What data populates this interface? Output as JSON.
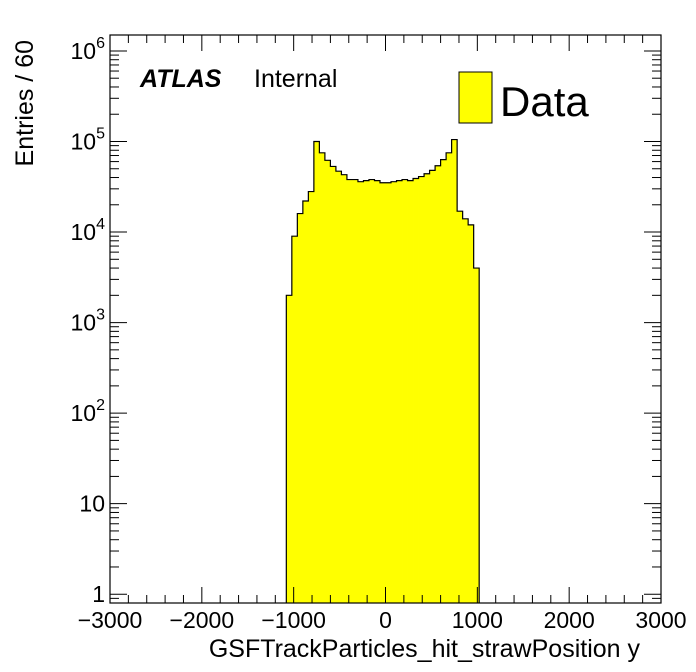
{
  "label": {
    "experiment": "ATLAS",
    "status": "Internal"
  },
  "colors": {
    "fill": "#ffff00",
    "line": "#000000"
  },
  "chart_data": {
    "type": "bar",
    "xlabel": "GSFTrackParticles_hit_strawPosition y",
    "ylabel": "Entries / 60",
    "xlim": [
      -3000,
      3000
    ],
    "ylim": [
      0.8,
      1500000
    ],
    "yscale": "log",
    "grid": false,
    "legend_position": "top-right",
    "xticks": [
      -3000,
      -2000,
      -1000,
      0,
      1000,
      2000,
      3000
    ],
    "xtick_labels": [
      "−3000",
      "−2000",
      "−1000",
      "0",
      "1000",
      "2000",
      "3000"
    ],
    "yticks": [
      {
        "value": 1,
        "base": "1",
        "exp": ""
      },
      {
        "value": 10,
        "base": "10",
        "exp": ""
      },
      {
        "value": 100,
        "base": "10",
        "exp": "2"
      },
      {
        "value": 1000,
        "base": "10",
        "exp": "3"
      },
      {
        "value": 10000,
        "base": "10",
        "exp": "4"
      },
      {
        "value": 100000,
        "base": "10",
        "exp": "5"
      },
      {
        "value": 1000000,
        "base": "10",
        "exp": "6"
      }
    ],
    "series": [
      {
        "name": "Data",
        "bin_width": 60,
        "x_start": -1080,
        "values": [
          2000,
          9000,
          16000,
          22000,
          28000,
          100000,
          75000,
          62000,
          53000,
          47000,
          43000,
          38000,
          38000,
          36000,
          37000,
          38000,
          37000,
          35000,
          35000,
          36000,
          37000,
          38000,
          37000,
          39000,
          41000,
          44000,
          48000,
          54000,
          63000,
          75000,
          105000,
          17000,
          14000,
          12000,
          4000
        ]
      }
    ]
  }
}
